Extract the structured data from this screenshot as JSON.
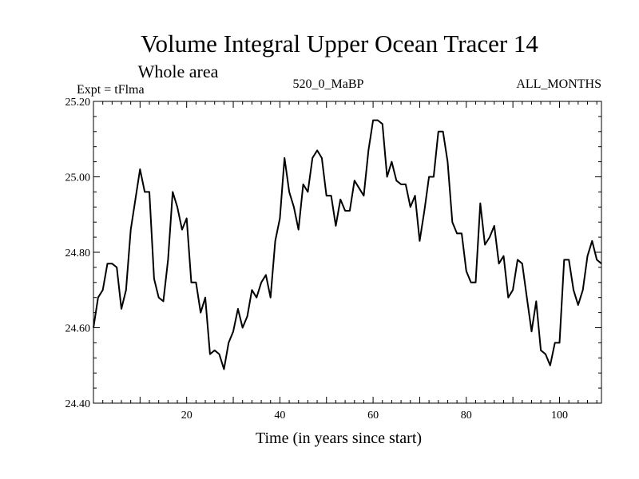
{
  "chart_data": {
    "type": "line",
    "title": "Volume Integral Upper Ocean Tracer 14",
    "subtitle": "Whole area",
    "expt_label": "Expt = tFlma",
    "center_label": "520_0_MaBP",
    "right_label": "ALL_MONTHS",
    "xlabel": "Time (in years since start)",
    "ylabel": "",
    "xlim": [
      0,
      109
    ],
    "ylim": [
      24.4,
      25.2
    ],
    "x_ticks": [
      20,
      40,
      60,
      80,
      100
    ],
    "y_ticks": [
      24.4,
      24.6,
      24.8,
      25.0,
      25.2
    ],
    "y_tick_labels": [
      "24.40",
      "24.60",
      "24.80",
      "25.00",
      "25.20"
    ],
    "grid": false,
    "series": [
      {
        "name": "tFlma",
        "x": [
          0,
          1,
          2,
          3,
          4,
          5,
          6,
          7,
          8,
          9,
          10,
          11,
          12,
          13,
          14,
          15,
          16,
          17,
          18,
          19,
          20,
          21,
          22,
          23,
          24,
          25,
          26,
          27,
          28,
          29,
          30,
          31,
          32,
          33,
          34,
          35,
          36,
          37,
          38,
          39,
          40,
          41,
          42,
          43,
          44,
          45,
          46,
          47,
          48,
          49,
          50,
          51,
          52,
          53,
          54,
          55,
          56,
          57,
          58,
          59,
          60,
          61,
          62,
          63,
          64,
          65,
          66,
          67,
          68,
          69,
          70,
          71,
          72,
          73,
          74,
          75,
          76,
          77,
          78,
          79,
          80,
          81,
          82,
          83,
          84,
          85,
          86,
          87,
          88,
          89,
          90,
          91,
          92,
          93,
          94,
          95,
          96,
          97,
          98,
          99,
          100,
          101,
          102,
          103,
          104,
          105,
          106,
          107,
          108,
          109
        ],
        "values": [
          24.6,
          24.68,
          24.7,
          24.77,
          24.77,
          24.76,
          24.65,
          24.7,
          24.86,
          24.94,
          25.02,
          24.96,
          24.96,
          24.73,
          24.68,
          24.67,
          24.78,
          24.96,
          24.92,
          24.86,
          24.89,
          24.72,
          24.72,
          24.64,
          24.68,
          24.53,
          24.54,
          24.53,
          24.49,
          24.56,
          24.59,
          24.65,
          24.6,
          24.63,
          24.7,
          24.68,
          24.72,
          24.74,
          24.68,
          24.83,
          24.89,
          25.05,
          24.96,
          24.92,
          24.86,
          24.98,
          24.96,
          25.05,
          25.07,
          25.05,
          24.95,
          24.95,
          24.87,
          24.94,
          24.91,
          24.91,
          24.99,
          24.97,
          24.95,
          25.07,
          25.15,
          25.15,
          25.14,
          25.0,
          25.04,
          24.99,
          24.98,
          24.98,
          24.92,
          24.95,
          24.83,
          24.91,
          25.0,
          25.0,
          25.12,
          25.12,
          25.04,
          24.88,
          24.85,
          24.85,
          24.75,
          24.72,
          24.72,
          24.93,
          24.82,
          24.84,
          24.87,
          24.77,
          24.79,
          24.68,
          24.7,
          24.78,
          24.77,
          24.68,
          24.59,
          24.67,
          24.54,
          24.53,
          24.5,
          24.56,
          24.56,
          24.78,
          24.78,
          24.7,
          24.66,
          24.7,
          24.79,
          24.83,
          24.78,
          24.77
        ]
      }
    ]
  }
}
